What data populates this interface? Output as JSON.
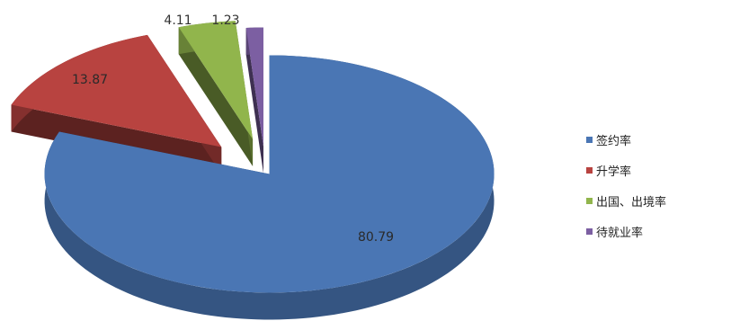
{
  "chart_data": {
    "type": "pie",
    "style": "3d-exploded",
    "title": "",
    "series": [
      {
        "values": [
          {
            "label": "签约率",
            "value": 80.79,
            "color": "#4a76b4"
          },
          {
            "label": "升学率",
            "value": 13.87,
            "color": "#b84340"
          },
          {
            "label": "出国、出境率",
            "value": 4.11,
            "color": "#91b54c"
          },
          {
            "label": "待就业率",
            "value": 1.23,
            "color": "#7c5fa2"
          }
        ]
      }
    ],
    "data_labels": [
      "80.79",
      "13.87",
      "4.11",
      "1.23"
    ],
    "legend": {
      "position": "right",
      "entries": [
        "签约率",
        "升学率",
        "出国、出境率",
        "待就业率"
      ]
    }
  }
}
